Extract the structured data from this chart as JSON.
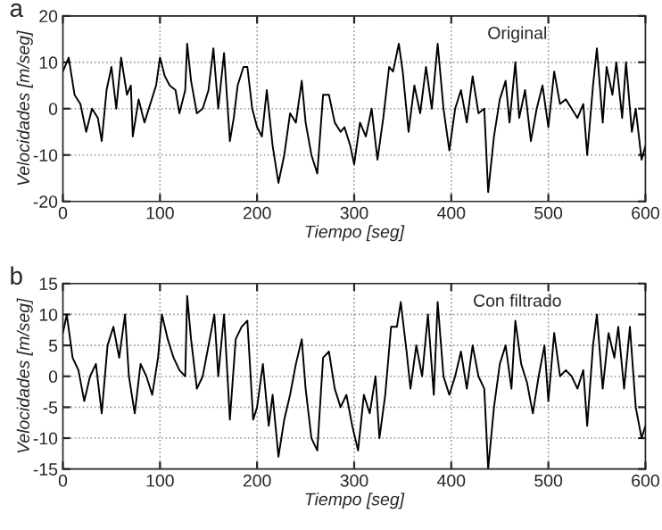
{
  "chart_data": [
    {
      "type": "line",
      "xlabel": "Tiempo [seg]",
      "ylabel": "Velocidades [m/seg]",
      "annotations": [
        "a",
        "Original"
      ],
      "xlim": [
        0,
        600
      ],
      "ylim": [
        -20,
        20
      ],
      "xticks": [
        0,
        100,
        200,
        300,
        400,
        500,
        600
      ],
      "yticks": [
        -20,
        -10,
        0,
        10,
        20
      ],
      "grid": true,
      "line_style": "solid",
      "marker": "none",
      "series": [
        {
          "color": "#000000",
          "x": [
            0,
            6,
            12,
            18,
            24,
            30,
            36,
            40,
            45,
            50,
            55,
            60,
            66,
            70,
            72,
            78,
            84,
            90,
            96,
            100,
            105,
            110,
            116,
            120,
            126,
            128,
            132,
            138,
            144,
            150,
            155,
            160,
            166,
            172,
            176,
            180,
            186,
            190,
            195,
            200,
            205,
            210,
            216,
            222,
            228,
            234,
            240,
            246,
            250,
            256,
            262,
            268,
            274,
            280,
            286,
            290,
            296,
            300,
            306,
            312,
            318,
            324,
            330,
            336,
            340,
            346,
            350,
            356,
            362,
            368,
            374,
            380,
            386,
            392,
            398,
            404,
            410,
            416,
            422,
            428,
            434,
            438,
            444,
            450,
            456,
            460,
            466,
            470,
            476,
            482,
            488,
            494,
            500,
            506,
            512,
            518,
            524,
            530,
            536,
            540,
            546,
            550,
            556,
            560,
            566,
            570,
            576,
            580,
            586,
            590,
            596,
            600
          ],
          "values": [
            8,
            11,
            3,
            1,
            -5,
            0,
            -2,
            -7,
            4,
            9,
            0,
            11,
            3,
            5,
            -6,
            2,
            -3,
            1,
            5,
            11,
            7,
            5,
            4,
            -1,
            4,
            14,
            6,
            -1,
            0,
            4,
            13,
            0,
            12,
            -7,
            -2,
            5,
            9,
            9,
            0,
            -4,
            -6,
            4,
            -8,
            -16,
            -10,
            -1,
            -3,
            6,
            -3,
            -10,
            -14,
            3,
            3,
            -3,
            -5,
            -4,
            -8,
            -12,
            -3,
            -6,
            0,
            -11,
            -2,
            9,
            8,
            14,
            8,
            -5,
            5,
            -1,
            9,
            0,
            14,
            0,
            -9,
            0,
            4,
            -3,
            7,
            -1,
            0,
            -18,
            -6,
            2,
            6,
            -3,
            10,
            -2,
            4,
            -7,
            0,
            5,
            -4,
            8,
            1,
            2,
            0,
            -2,
            1,
            -10,
            5,
            13,
            -3,
            9,
            3,
            10,
            -2,
            10,
            -5,
            0,
            -11,
            -8
          ]
        }
      ]
    },
    {
      "type": "line",
      "xlabel": "Tiempo [seg]",
      "ylabel": "Velocidades [m/seg]",
      "annotations": [
        "b",
        "Con filtrado"
      ],
      "xlim": [
        0,
        600
      ],
      "ylim": [
        -15,
        15
      ],
      "xticks": [
        0,
        100,
        200,
        300,
        400,
        500,
        600
      ],
      "yticks": [
        -15,
        -10,
        -5,
        0,
        5,
        10,
        15
      ],
      "grid": true,
      "line_style": "solid",
      "marker": "none",
      "series": [
        {
          "color": "#000000",
          "x": [
            0,
            4,
            10,
            16,
            22,
            28,
            34,
            40,
            46,
            52,
            58,
            64,
            68,
            74,
            80,
            86,
            92,
            98,
            102,
            108,
            114,
            120,
            126,
            128,
            132,
            138,
            144,
            150,
            156,
            160,
            166,
            172,
            178,
            184,
            190,
            196,
            200,
            206,
            212,
            216,
            222,
            228,
            234,
            240,
            246,
            250,
            256,
            262,
            268,
            274,
            280,
            286,
            292,
            298,
            304,
            310,
            316,
            322,
            326,
            332,
            338,
            344,
            348,
            354,
            358,
            364,
            370,
            376,
            382,
            386,
            392,
            398,
            404,
            410,
            416,
            422,
            428,
            434,
            438,
            444,
            450,
            456,
            462,
            466,
            472,
            478,
            484,
            490,
            496,
            500,
            506,
            512,
            518,
            524,
            530,
            536,
            540,
            546,
            550,
            556,
            562,
            568,
            572,
            578,
            584,
            590,
            596,
            600
          ],
          "values": [
            7,
            10,
            3,
            1,
            -4,
            0,
            2,
            -6,
            5,
            8,
            3,
            10,
            0,
            -6,
            2,
            0,
            -3,
            3,
            10,
            6,
            3,
            1,
            0,
            13,
            6,
            -2,
            0,
            5,
            10,
            0,
            10,
            -7,
            6,
            8,
            9,
            -7,
            -5,
            2,
            -8,
            -3,
            -13,
            -7,
            -3,
            2,
            6,
            -2,
            -10,
            -12,
            3,
            4,
            -2,
            -5,
            -3,
            -8,
            -12,
            -3,
            -6,
            0,
            -10,
            -3,
            8,
            8,
            12,
            4,
            -2,
            5,
            0,
            10,
            -3,
            12,
            0,
            -3,
            0,
            4,
            -2,
            5,
            0,
            -2,
            -15,
            -5,
            2,
            5,
            -2,
            9,
            2,
            -1,
            -6,
            0,
            5,
            -4,
            7,
            0,
            1,
            0,
            -2,
            1,
            -8,
            5,
            10,
            -2,
            7,
            3,
            8,
            -2,
            8,
            -5,
            -10,
            -8
          ]
        }
      ]
    }
  ]
}
